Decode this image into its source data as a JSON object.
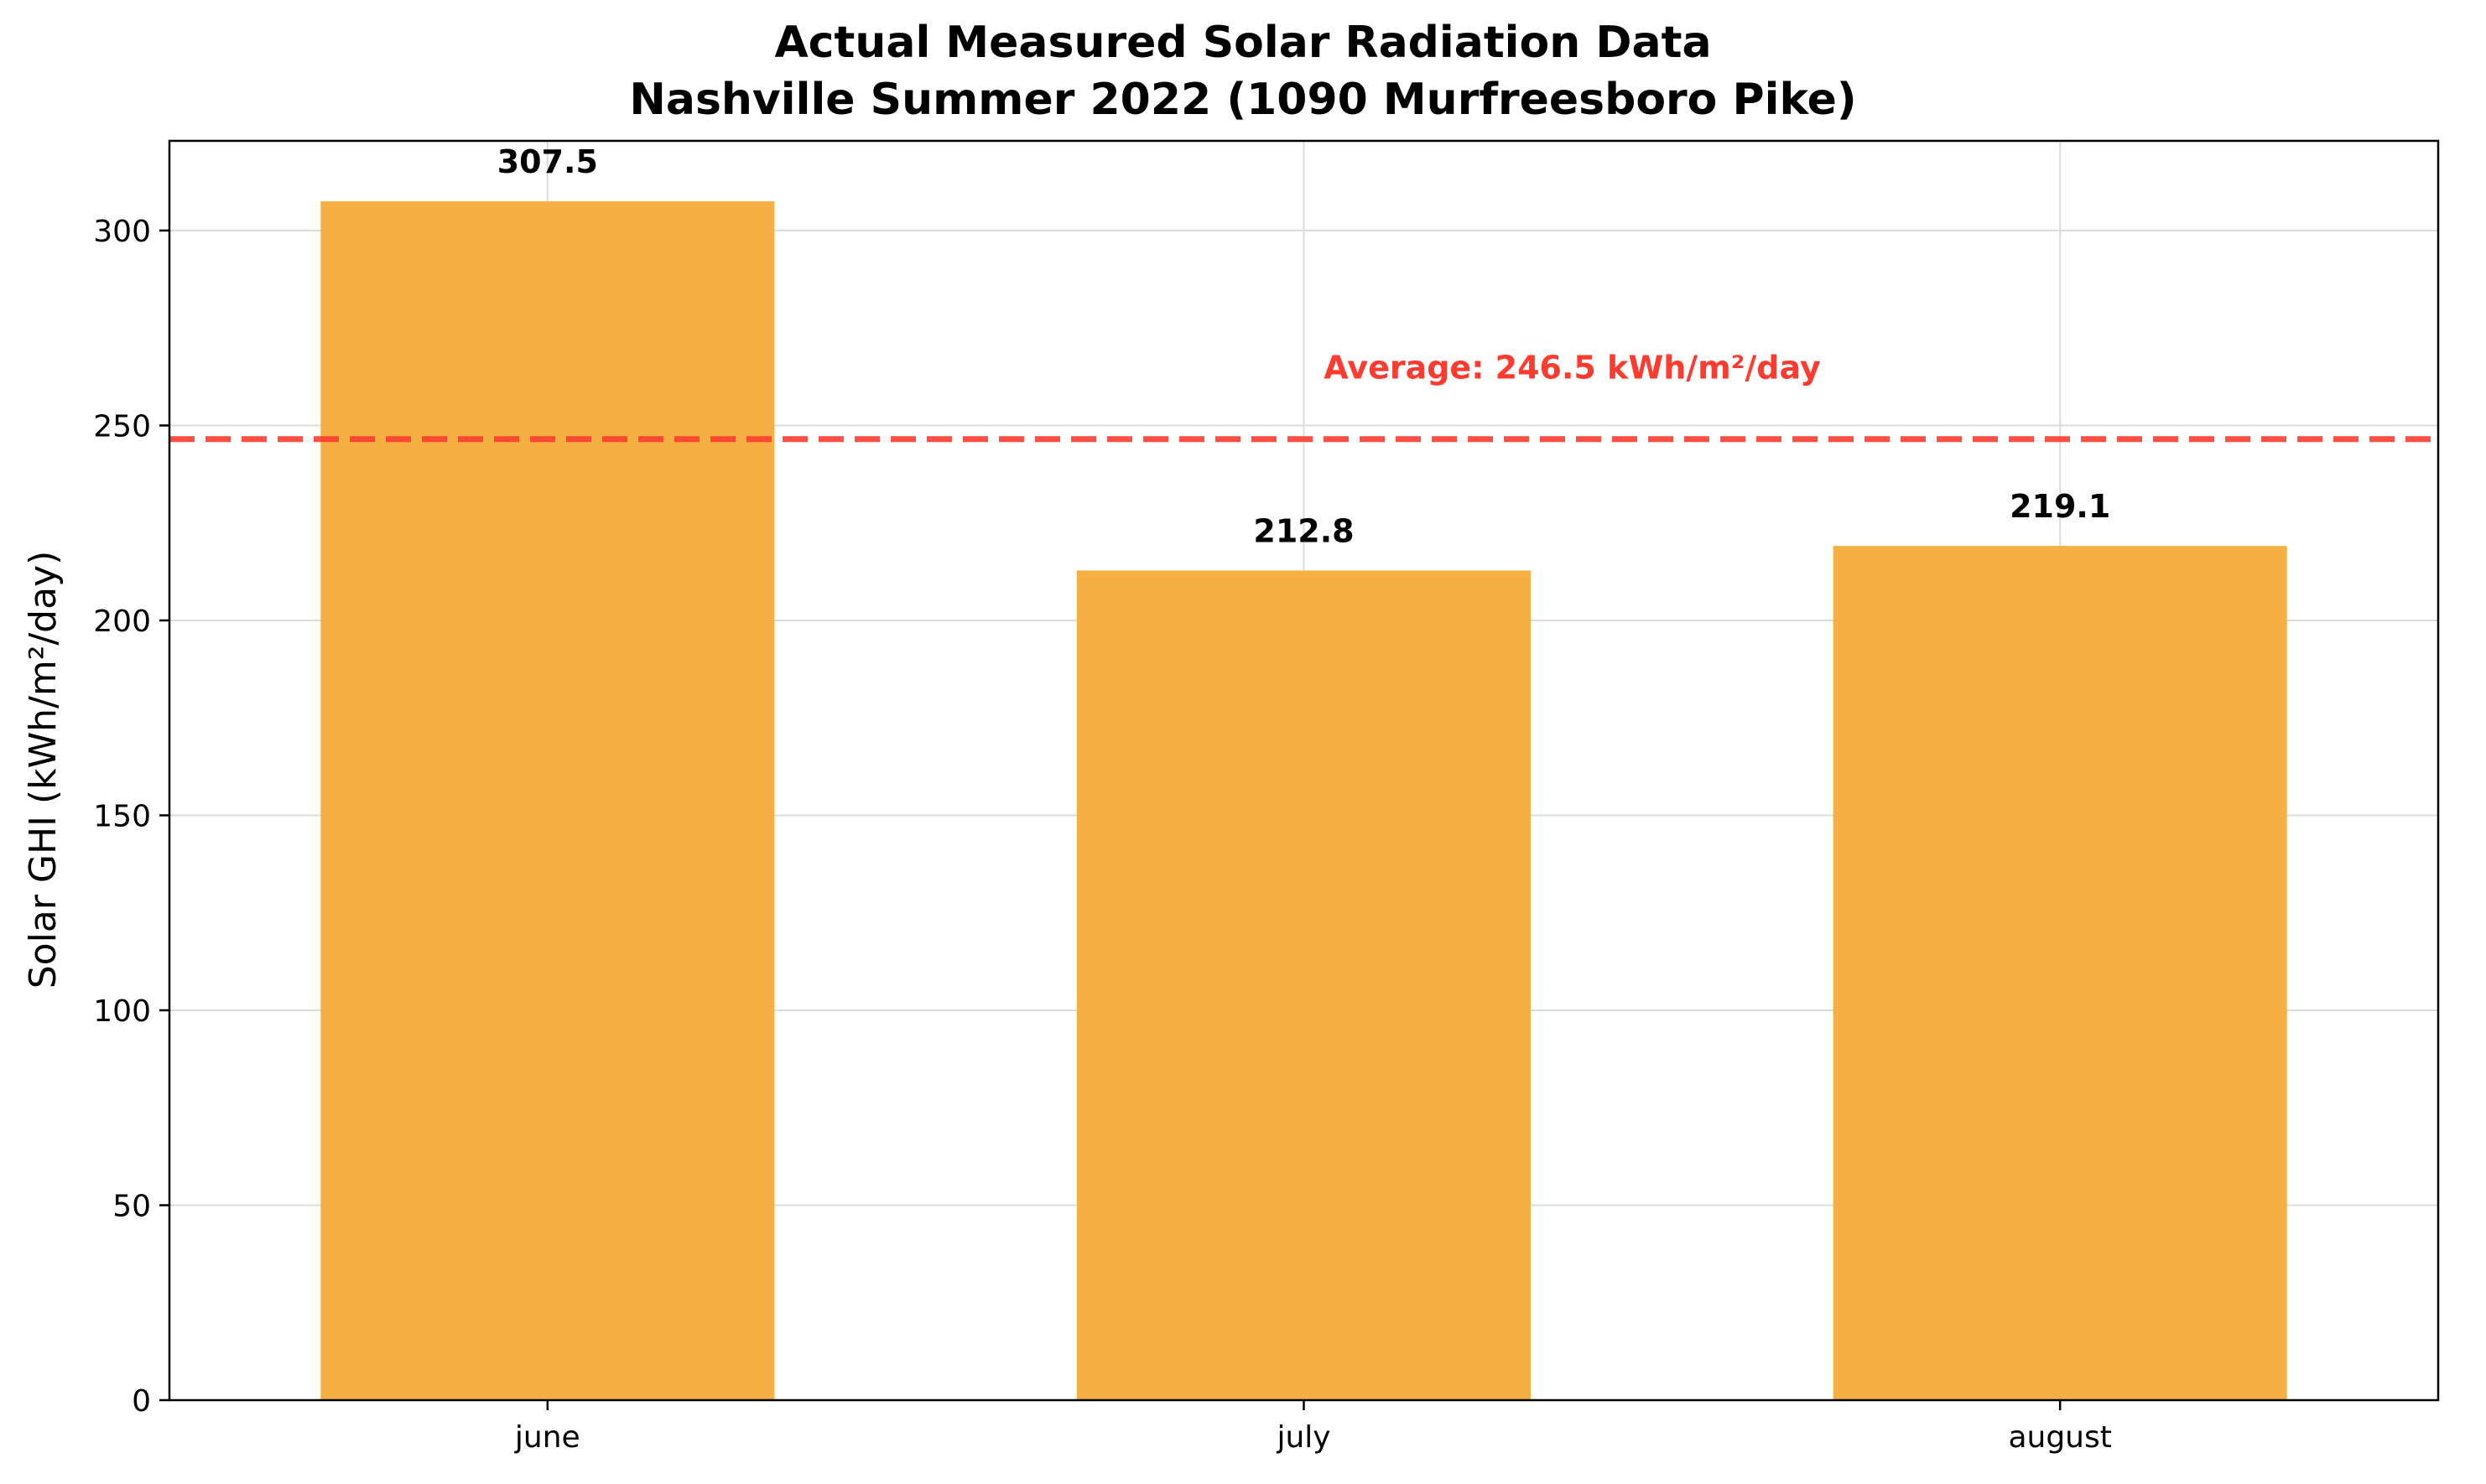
{
  "chart_data": {
    "type": "bar",
    "title": "Actual Measured Solar Radiation Data",
    "subtitle": "Nashville Summer 2022 (1090 Murfreesboro Pike)",
    "xlabel": "",
    "ylabel": "Solar GHI (kWh/m²/day)",
    "categories": [
      "june",
      "july",
      "august"
    ],
    "values": [
      307.5,
      212.8,
      219.1
    ],
    "value_labels": [
      "307.5",
      "212.8",
      "219.1"
    ],
    "ylim": [
      0,
      323
    ],
    "yticks": [
      0,
      50,
      100,
      150,
      200,
      250,
      300
    ],
    "ytick_labels": [
      "0",
      "50",
      "100",
      "150",
      "200",
      "250",
      "300"
    ],
    "grid": true,
    "bar_color": "#f5af42",
    "average": {
      "value": 246.5,
      "label": "Average: 246.5 kWh/m²/day",
      "color": "#ff3b30",
      "style": "dashed"
    }
  }
}
